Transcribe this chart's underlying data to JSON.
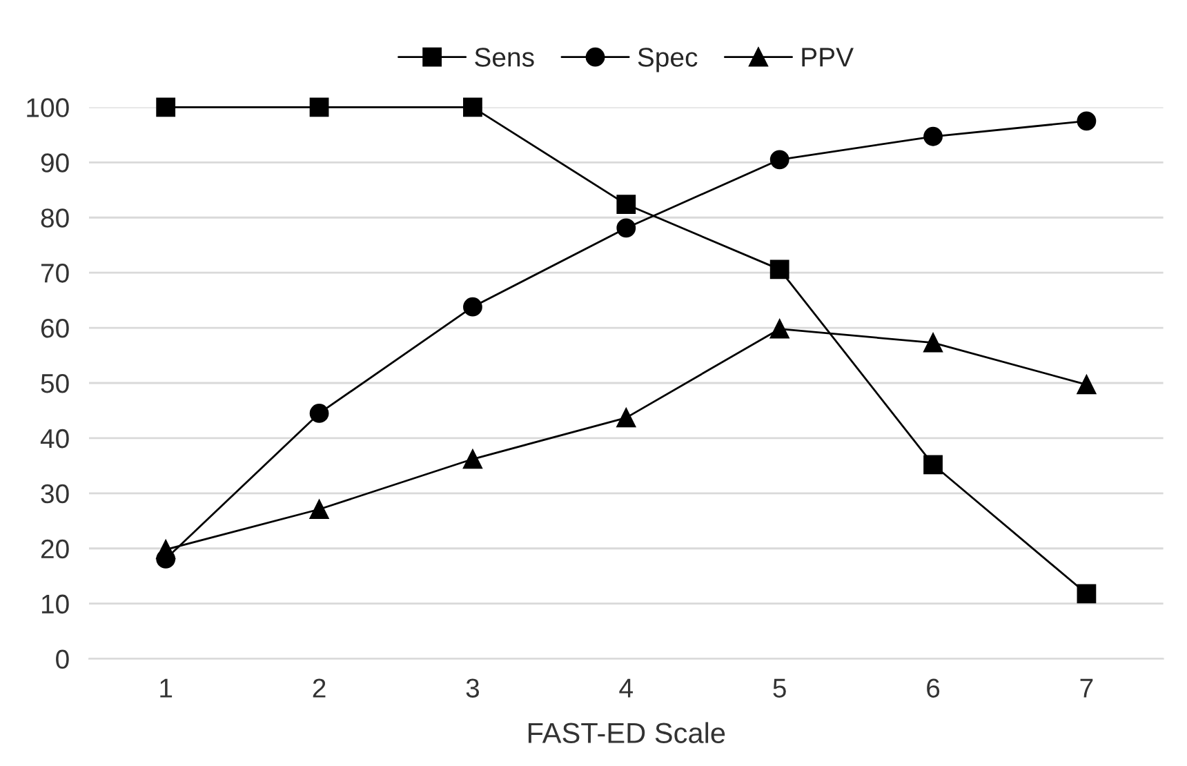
{
  "chart_data": {
    "type": "line",
    "xlabel": "FAST-ED Scale",
    "categories": [
      "1",
      "2",
      "3",
      "4",
      "5",
      "6",
      "7"
    ],
    "series": [
      {
        "name": "Sens",
        "color": "#000000",
        "marker": "square",
        "values": [
          100,
          100,
          100,
          82.4,
          70.6,
          35.2,
          11.8
        ]
      },
      {
        "name": "Spec",
        "color": "#000000",
        "marker": "circle",
        "values": [
          18.1,
          44.5,
          63.8,
          78.1,
          90.5,
          94.7,
          97.5
        ]
      },
      {
        "name": "PPV",
        "color": "#000000",
        "marker": "triangle",
        "values": [
          19.8,
          27.1,
          36.2,
          43.7,
          59.8,
          57.3,
          49.7
        ]
      }
    ],
    "ylim": [
      0,
      100
    ],
    "yticks": [
      0,
      10,
      20,
      30,
      40,
      50,
      60,
      70,
      80,
      90,
      100
    ],
    "grid": "y",
    "legend": "top",
    "line_style": "solid"
  }
}
